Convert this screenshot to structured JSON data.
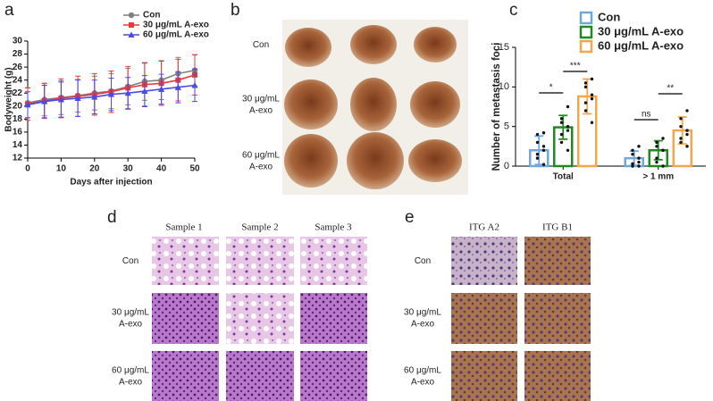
{
  "chart_data": [
    {
      "type": "line",
      "panel": "a",
      "x_label": "Days after injection",
      "y_label": "Bodyweight (g)",
      "x": [
        0,
        5,
        10,
        15,
        20,
        25,
        30,
        35,
        40,
        45,
        50
      ],
      "xlim": [
        0,
        50
      ],
      "xticks": [
        0,
        10,
        20,
        30,
        40,
        50
      ],
      "ylim": [
        12,
        30
      ],
      "yticks": [
        12,
        14,
        16,
        18,
        20,
        22,
        24,
        26,
        28,
        30
      ],
      "series": [
        {
          "name": "Con",
          "color": "#7f7f7f",
          "marker": "circle",
          "values": [
            20.5,
            21,
            21.3,
            21.6,
            22,
            22.3,
            23,
            23.8,
            24,
            25,
            25.5
          ],
          "errors": [
            2.3,
            2.5,
            2.6,
            2.5,
            2.6,
            2.7,
            2.8,
            2.9,
            3,
            2.5,
            2.4
          ]
        },
        {
          "name": "30 μg/mL A-exo",
          "color": "#e8383d",
          "marker": "square",
          "values": [
            20.3,
            20.8,
            21.2,
            21.5,
            21.8,
            22.2,
            22.8,
            23.3,
            23.5,
            24,
            24.8
          ],
          "errors": [
            2.5,
            2.7,
            3,
            3.1,
            3.2,
            3.2,
            3.3,
            3.3,
            3.4,
            3.2,
            3.1
          ]
        },
        {
          "name": "60 μg/mL A-exo",
          "color": "#4a4ae6",
          "marker": "triangle",
          "values": [
            20.2,
            20.7,
            21,
            21.2,
            21.4,
            21.8,
            22,
            22.3,
            22.6,
            22.9,
            23.2
          ],
          "errors": [
            2,
            2.5,
            2.7,
            2.8,
            2.6,
            2.5,
            2.4,
            2.4,
            2.3,
            2.4,
            2.5
          ]
        }
      ]
    },
    {
      "type": "bar",
      "panel": "c",
      "y_label": "Number of metastasis foci",
      "categories": [
        "Total",
        "> 1 mm"
      ],
      "ylim": [
        0,
        15
      ],
      "yticks": [
        0,
        5,
        10,
        15
      ],
      "series": [
        {
          "name": "Con",
          "color": "#6fa8dc",
          "values": [
            2,
            1
          ],
          "errors": [
            1.8,
            0.9
          ],
          "points": [
            [
              0.2,
              1,
              1.5,
              2,
              2.5,
              3,
              4,
              4.2
            ],
            [
              0,
              0,
              0.3,
              0.5,
              1,
              1.5,
              2,
              2.5
            ]
          ]
        },
        {
          "name": "30 μg/mL A-exo",
          "color": "#1f8a1f",
          "values": [
            4.9,
            2
          ],
          "errors": [
            1.5,
            1.2
          ],
          "points": [
            [
              2,
              3,
              4,
              4.5,
              5,
              5.5,
              6,
              7.5
            ],
            [
              0,
              0.5,
              1,
              2,
              2,
              2.5,
              3,
              3.5
            ]
          ]
        },
        {
          "name": "60 μg/mL A-exo",
          "color": "#f5a54a",
          "values": [
            8.8,
            4.5
          ],
          "errors": [
            2.2,
            1.7
          ],
          "points": [
            [
              5.5,
              7,
              8,
              8.5,
              9,
              10,
              10.5,
              11
            ],
            [
              2.5,
              3,
              3.5,
              4,
              4.5,
              5,
              6,
              7
            ]
          ]
        }
      ],
      "annotations": [
        "*",
        "***",
        "ns",
        "**"
      ]
    }
  ],
  "photo_panels": [
    {
      "panel": "b",
      "row_labels": [
        [
          "Con"
        ],
        [
          "30 μg/mL",
          "A-exo"
        ],
        [
          "60 μg/mL",
          "A-exo"
        ]
      ]
    },
    {
      "panel": "d",
      "column_labels": [
        "Sample 1",
        "Sample 2",
        "Sample 3"
      ],
      "row_labels": [
        [
          "Con"
        ],
        [
          "30 μg/mL",
          "A-exo"
        ],
        [
          "60 μg/mL",
          "A-exo"
        ]
      ]
    },
    {
      "panel": "e",
      "column_labels": [
        "ITG A2",
        "ITG B1"
      ],
      "row_labels": [
        [
          "Con"
        ],
        [
          "30 μg/mL",
          "A-exo"
        ],
        [
          "60 μg/mL",
          "A-exo"
        ]
      ]
    }
  ]
}
